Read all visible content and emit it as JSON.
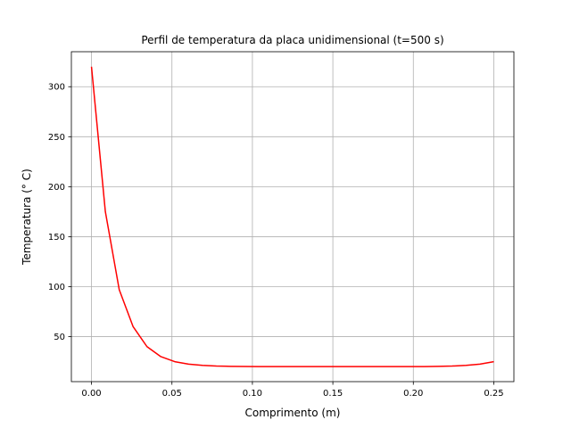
{
  "chart_data": {
    "type": "line",
    "title": "Perfil de temperatura da placa unidimensional (t=500 s)",
    "xlabel": "Comprimento (m)",
    "ylabel": "Temperatura (° C)",
    "xlim": [
      -0.0125,
      0.2625
    ],
    "ylim": [
      5,
      335
    ],
    "grid": true,
    "x_ticks": [
      0.0,
      0.05,
      0.1,
      0.15,
      0.2,
      0.25
    ],
    "x_tick_labels": [
      "0.00",
      "0.05",
      "0.10",
      "0.15",
      "0.20",
      "0.25"
    ],
    "y_ticks": [
      50,
      100,
      150,
      200,
      250,
      300
    ],
    "y_tick_labels": [
      "50",
      "100",
      "150",
      "200",
      "250",
      "300"
    ],
    "series": [
      {
        "color": "#ff0000",
        "x": [
          0.0,
          0.00862,
          0.01724,
          0.02586,
          0.03448,
          0.0431,
          0.05172,
          0.06034,
          0.06897,
          0.07759,
          0.08621,
          0.09483,
          0.10345,
          0.11207,
          0.12069,
          0.12931,
          0.13793,
          0.14655,
          0.15517,
          0.16379,
          0.17241,
          0.18103,
          0.18966,
          0.19828,
          0.2069,
          0.21552,
          0.22414,
          0.23276,
          0.24138,
          0.25
        ],
        "y": [
          320,
          175,
          97,
          60,
          40,
          30,
          25,
          22.5,
          21.3,
          20.6,
          20.3,
          20.15,
          20.1,
          20.05,
          20.02,
          20.0,
          20.0,
          20.0,
          20.0,
          20.0,
          20.0,
          20.0,
          20.0,
          20.05,
          20.1,
          20.3,
          20.6,
          21.3,
          22.5,
          25
        ]
      }
    ]
  }
}
